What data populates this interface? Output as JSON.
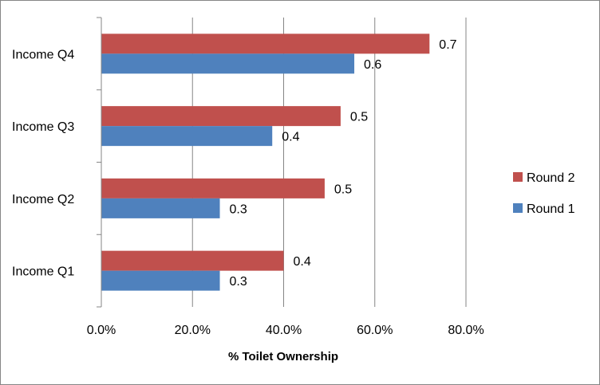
{
  "chart_data": {
    "type": "bar",
    "orientation": "horizontal",
    "title": "",
    "xlabel": "% Toilet Ownership",
    "ylabel": "",
    "categories": [
      "Income Q1",
      "Income Q2",
      "Income Q3",
      "Income Q4"
    ],
    "xlim": [
      0,
      0.8
    ],
    "x_ticks": [
      0,
      0.2,
      0.4,
      0.6,
      0.8
    ],
    "x_tick_labels": [
      "0.0%",
      "20.0%",
      "40.0%",
      "60.0%",
      "80.0%"
    ],
    "grid": "vertical major gridlines",
    "legend_position": "right",
    "series": [
      {
        "name": "Round 1",
        "color": "#4F81BD",
        "values": [
          0.26,
          0.26,
          0.375,
          0.555
        ],
        "data_labels": [
          "0.3",
          "0.3",
          "0.4",
          "0.6"
        ]
      },
      {
        "name": "Round 2",
        "color": "#C0504D",
        "values": [
          0.4,
          0.49,
          0.525,
          0.72
        ],
        "data_labels": [
          "0.4",
          "0.5",
          "0.5",
          "0.7"
        ]
      }
    ]
  }
}
